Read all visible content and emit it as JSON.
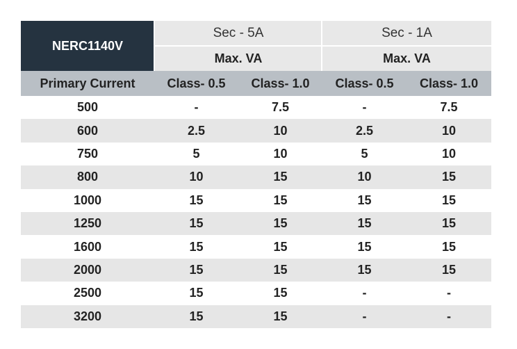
{
  "header": {
    "model": "NERC1140V",
    "groups": [
      {
        "name": "Sec - 5A",
        "sub": "Max. VA"
      },
      {
        "name": "Sec - 1A",
        "sub": "Max. VA"
      }
    ],
    "columns": [
      "Primary Current",
      "Class- 0.5",
      "Class- 1.0",
      "Class- 0.5",
      "Class- 1.0"
    ]
  },
  "table": {
    "rows": [
      [
        "500",
        "-",
        "7.5",
        "-",
        "7.5"
      ],
      [
        "600",
        "2.5",
        "10",
        "2.5",
        "10"
      ],
      [
        "750",
        "5",
        "10",
        "5",
        "10"
      ],
      [
        "800",
        "10",
        "15",
        "10",
        "15"
      ],
      [
        "1000",
        "15",
        "15",
        "15",
        "15"
      ],
      [
        "1250",
        "15",
        "15",
        "15",
        "15"
      ],
      [
        "1600",
        "15",
        "15",
        "15",
        "15"
      ],
      [
        "2000",
        "15",
        "15",
        "15",
        "15"
      ],
      [
        "2500",
        "15",
        "15",
        "-",
        "-"
      ],
      [
        "3200",
        "15",
        "15",
        "-",
        "-"
      ]
    ]
  }
}
